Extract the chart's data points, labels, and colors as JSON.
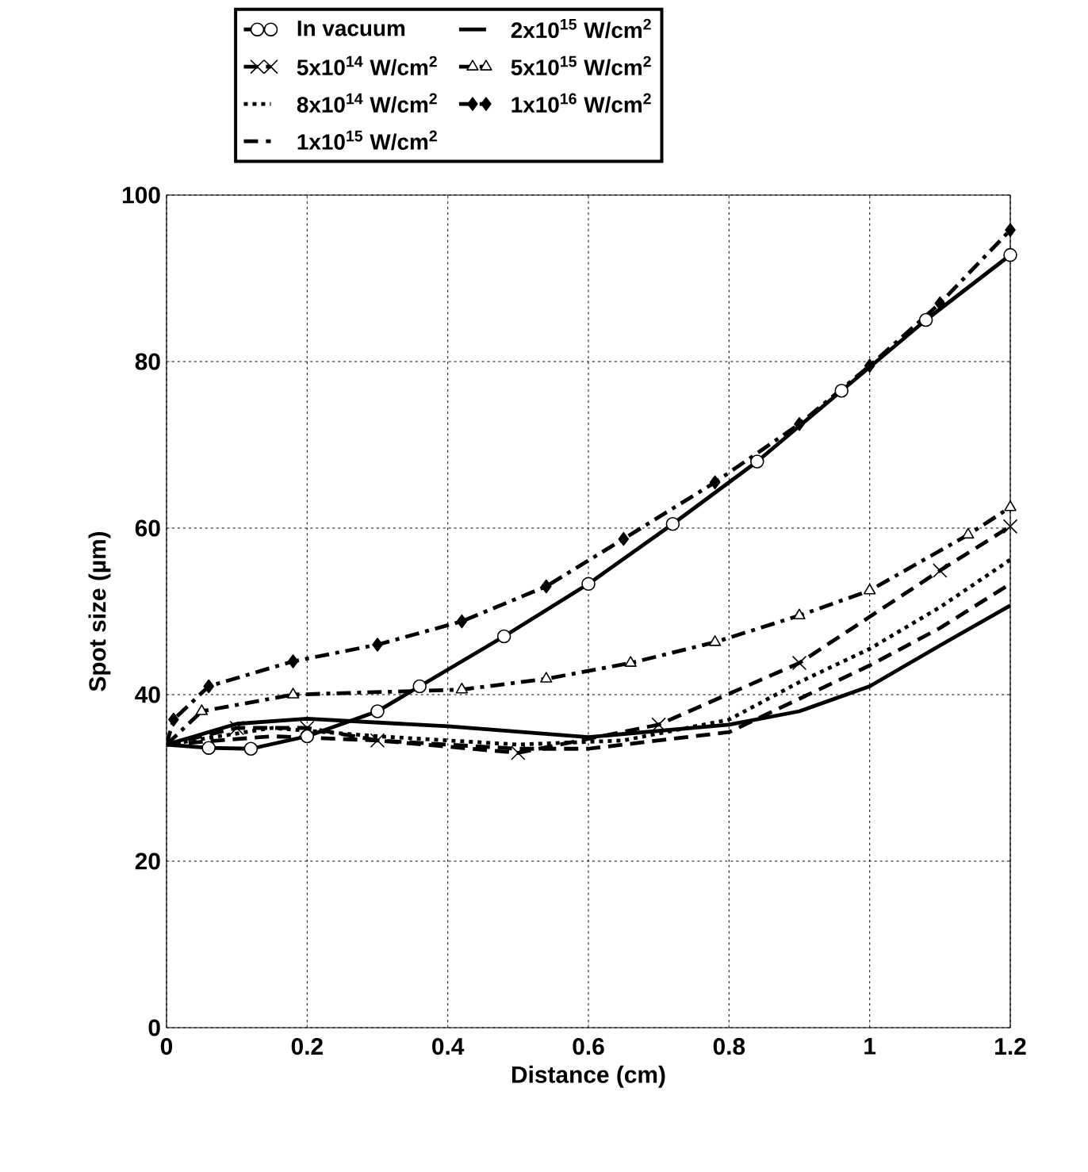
{
  "chart_data": {
    "type": "line",
    "xlabel": "Distance (cm)",
    "ylabel": "Spot size (µm)",
    "xlim": [
      0,
      1.2
    ],
    "ylim": [
      0,
      100
    ],
    "xticks": [
      0,
      0.2,
      0.4,
      0.6,
      0.8,
      1,
      1.2
    ],
    "yticks": [
      0,
      20,
      40,
      60,
      80,
      100
    ],
    "grid": true,
    "legend": "top",
    "series": [
      {
        "name": "In vacuum",
        "color": "#000000",
        "marker": "circle",
        "line_style": "solid",
        "x": [
          0,
          0.06,
          0.12,
          0.2,
          0.3,
          0.36,
          0.48,
          0.6,
          0.72,
          0.84,
          0.96,
          1.08,
          1.2
        ],
        "values": [
          34,
          33.6,
          33.5,
          35,
          38,
          41,
          47,
          53.3,
          60.5,
          68,
          76.5,
          85,
          92.8
        ]
      },
      {
        "name": "5x10$^{14}$ W/cm$^{2}$",
        "color": "#000000",
        "marker": "cross",
        "line_style": "dashed",
        "x": [
          0,
          0.1,
          0.2,
          0.3,
          0.5,
          0.7,
          0.9,
          1.1,
          1.2
        ],
        "values": [
          34,
          36,
          36,
          34.5,
          33,
          36.4,
          43.8,
          54.9,
          60.2
        ]
      },
      {
        "name": "8x10$^{14}$ W/cm$^{2}$",
        "color": "#000000",
        "marker": "none",
        "line_style": "dotted",
        "x": [
          0,
          0.15,
          0.3,
          0.5,
          0.65,
          0.8,
          0.9,
          1,
          1.1,
          1.2
        ],
        "values": [
          34,
          36,
          35,
          34,
          34.5,
          37,
          41.5,
          45.5,
          50.5,
          56.2
        ]
      },
      {
        "name": "1x10$^{15}$ W/cm$^{2}$",
        "color": "#000000",
        "marker": "none",
        "line_style": "dashed",
        "x": [
          0,
          0.15,
          0.3,
          0.5,
          0.6,
          0.8,
          0.9,
          1,
          1.1,
          1.2
        ],
        "values": [
          34,
          35,
          34.5,
          33.5,
          33.5,
          35.5,
          39.5,
          43.5,
          48,
          53.3
        ]
      },
      {
        "name": "2x10$^{15}$ W/cm$^{2}$",
        "color": "#000000",
        "marker": "none",
        "line_style": "solid",
        "x": [
          0,
          0.1,
          0.2,
          0.4,
          0.6,
          0.8,
          0.9,
          1,
          1.1,
          1.2
        ],
        "values": [
          34,
          36.5,
          37.1,
          36.2,
          34.9,
          36.4,
          38,
          41,
          45.9,
          50.7
        ]
      },
      {
        "name": "5x10$^{15}$ W/cm$^{2}$",
        "color": "#000000",
        "marker": "triangle",
        "line_style": "dashdot",
        "x": [
          0,
          0.05,
          0.18,
          0.42,
          0.54,
          0.66,
          0.78,
          0.9,
          1,
          1.14,
          1.2
        ],
        "values": [
          34,
          38,
          40,
          40.6,
          41.9,
          43.8,
          46.3,
          49.5,
          52.5,
          59.2,
          62.5
        ]
      },
      {
        "name": "1x10$^{16}$ W/cm$^{2}$",
        "color": "#000000",
        "marker": "diamond",
        "line_style": "dashdot",
        "x": [
          0,
          0.01,
          0.06,
          0.18,
          0.3,
          0.42,
          0.54,
          0.65,
          0.78,
          0.9,
          1,
          1.1,
          1.2
        ],
        "values": [
          34,
          37,
          41,
          44,
          46,
          48.8,
          53,
          58.7,
          65.5,
          72.5,
          79.5,
          87,
          95.8
        ]
      }
    ]
  }
}
